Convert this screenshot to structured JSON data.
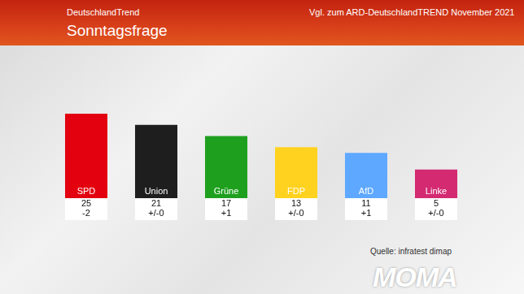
{
  "chart_data": {
    "type": "bar",
    "title": "Sonntagsfrage",
    "subtitle": "DeutschlandTrend",
    "annotations": [
      "Vgl. zum ARD-DeutschlandTREND November 2021",
      "Quelle: infratest dimap",
      "MOMA"
    ],
    "categories": [
      "SPD",
      "Union",
      "Grüne",
      "FDP",
      "AfD",
      "Linke"
    ],
    "values": [
      25,
      21,
      17,
      13,
      11,
      5
    ],
    "change_labels": [
      "-2",
      "+/-0",
      "+1",
      "+/-0",
      "+1",
      "+/-0"
    ],
    "colors": [
      "#e3000f",
      "#1e1e1e",
      "#1ea01e",
      "#ffd21f",
      "#5ea8ff",
      "#d42a72"
    ],
    "ylim": [
      0,
      25
    ],
    "grid": false,
    "tick_labels": false,
    "data_labels": true
  }
}
